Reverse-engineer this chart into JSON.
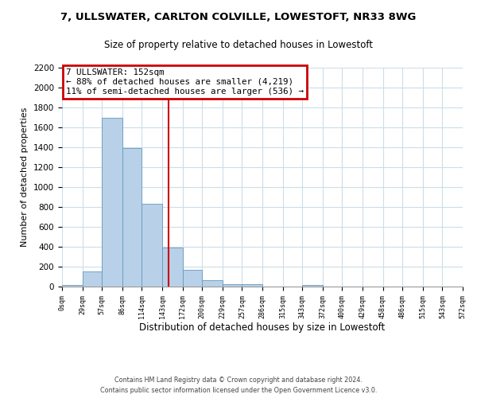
{
  "title1": "7, ULLSWATER, CARLTON COLVILLE, LOWESTOFT, NR33 8WG",
  "title2": "Size of property relative to detached houses in Lowestoft",
  "xlabel": "Distribution of detached houses by size in Lowestoft",
  "ylabel": "Number of detached properties",
  "bar_edges": [
    0,
    29,
    57,
    86,
    114,
    143,
    172,
    200,
    229,
    257,
    286,
    315,
    343,
    372,
    400,
    429,
    458,
    486,
    515,
    543,
    572
  ],
  "bar_heights": [
    20,
    155,
    1700,
    1395,
    830,
    390,
    165,
    65,
    25,
    25,
    0,
    0,
    20,
    0,
    0,
    0,
    0,
    0,
    0,
    0
  ],
  "bar_color": "#b8d0e8",
  "bar_edge_color": "#6699bb",
  "property_line_x": 152,
  "property_line_color": "#cc0000",
  "annotation_title": "7 ULLSWATER: 152sqm",
  "annotation_line1": "← 88% of detached houses are smaller (4,219)",
  "annotation_line2": "11% of semi-detached houses are larger (536) →",
  "annotation_box_color": "#cc0000",
  "ylim": [
    0,
    2200
  ],
  "yticks": [
    0,
    200,
    400,
    600,
    800,
    1000,
    1200,
    1400,
    1600,
    1800,
    2000,
    2200
  ],
  "tick_labels": [
    "0sqm",
    "29sqm",
    "57sqm",
    "86sqm",
    "114sqm",
    "143sqm",
    "172sqm",
    "200sqm",
    "229sqm",
    "257sqm",
    "286sqm",
    "315sqm",
    "343sqm",
    "372sqm",
    "400sqm",
    "429sqm",
    "458sqm",
    "486sqm",
    "515sqm",
    "543sqm",
    "572sqm"
  ],
  "footer1": "Contains HM Land Registry data © Crown copyright and database right 2024.",
  "footer2": "Contains public sector information licensed under the Open Government Licence v3.0.",
  "bg_color": "#ffffff",
  "grid_color": "#ccdde8"
}
